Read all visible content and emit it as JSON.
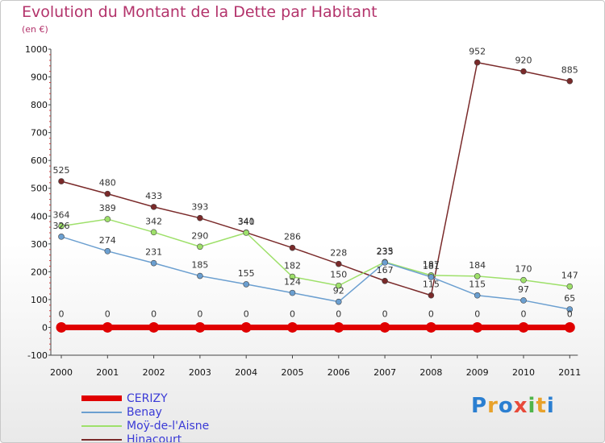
{
  "header": {
    "title": "Evolution du Montant de la Dette par Habitant",
    "unit": "(en €)"
  },
  "logo": {
    "text": "Proxiti",
    "letters": [
      "P",
      "r",
      "o",
      "x",
      "i",
      "t",
      "i"
    ],
    "colors": [
      "#2b7fd1",
      "#e8a22b",
      "#2b7fd1",
      "#e84a3a",
      "#4fb54a",
      "#e8a22b",
      "#2b7fd1"
    ]
  },
  "chart_data": {
    "type": "line",
    "categories": [
      "2000",
      "2001",
      "2002",
      "2003",
      "2004",
      "2005",
      "2006",
      "2007",
      "2008",
      "2009",
      "2010",
      "2011"
    ],
    "ylim": [
      -100,
      1000
    ],
    "yticks": [
      -100,
      0,
      100,
      200,
      300,
      400,
      500,
      600,
      700,
      800,
      900,
      1000
    ],
    "grid": false,
    "legend_position": "bottom-left",
    "series": [
      {
        "name": "CERIZY",
        "color": "#e00000",
        "values": [
          0,
          0,
          0,
          0,
          0,
          0,
          0,
          0,
          0,
          0,
          0,
          0
        ],
        "labels": [
          "0",
          "0",
          "0",
          "0",
          "0",
          "0",
          "0",
          "0",
          "0",
          "0",
          "0",
          "0"
        ]
      },
      {
        "name": "Benay",
        "color": "#6b9fd0",
        "values": [
          326,
          274,
          231,
          185,
          155,
          124,
          92,
          233,
          181,
          115,
          97,
          65
        ],
        "labels": [
          "326",
          "274",
          "231",
          "185",
          "155",
          "124",
          "92",
          "233",
          "181",
          "115",
          "97",
          "65"
        ]
      },
      {
        "name": "Moÿ-de-l'Aisne",
        "color": "#9ee06a",
        "values": [
          364,
          389,
          342,
          290,
          340,
          182,
          150,
          235,
          187,
          184,
          170,
          147
        ],
        "labels": [
          "364",
          "389",
          "342",
          "290",
          "340",
          "182",
          "150",
          "235",
          "187",
          "184",
          "170",
          "147"
        ]
      },
      {
        "name": "Hinacourt",
        "color": "#7a2a2a",
        "values": [
          525,
          480,
          433,
          393,
          341,
          286,
          228,
          167,
          115,
          952,
          920,
          885
        ],
        "labels": [
          "525",
          "480",
          "433",
          "393",
          "341",
          "286",
          "228",
          "167",
          "115",
          "952",
          "920",
          "885"
        ]
      }
    ]
  }
}
